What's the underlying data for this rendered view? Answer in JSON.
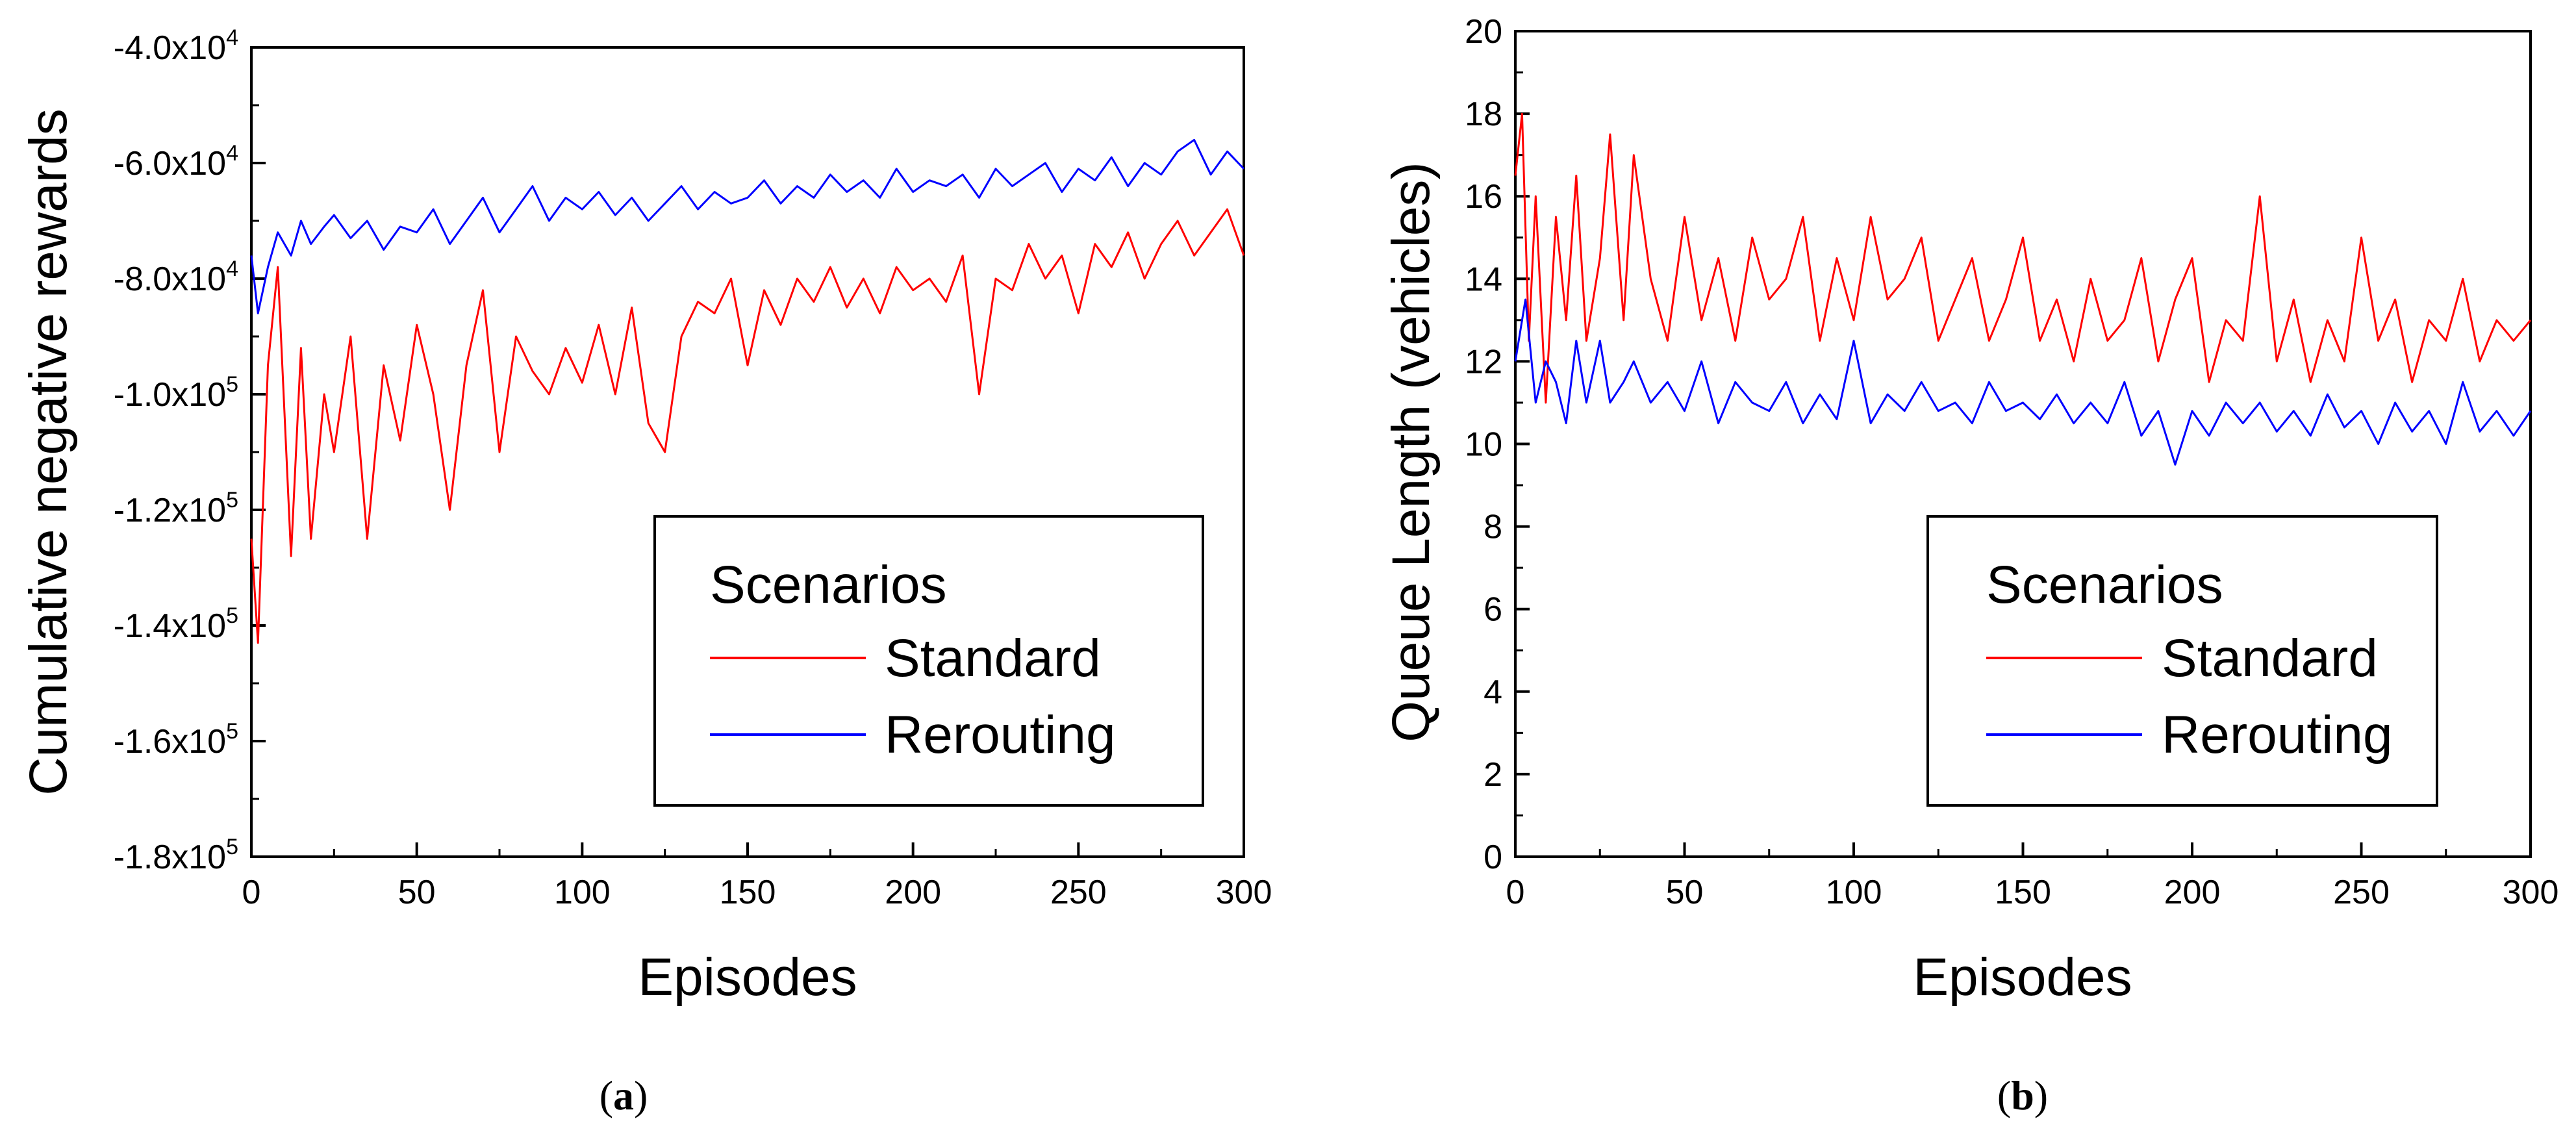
{
  "chart_data": [
    {
      "type": "line",
      "caption": {
        "open": "(",
        "letter": "a",
        "close": ")"
      },
      "xlabel": "Episodes",
      "ylabel": "Cumulative negative rewards",
      "xlim": [
        0,
        300
      ],
      "ylim": [
        -180000,
        -40000
      ],
      "x_ticks": [
        0,
        50,
        100,
        150,
        200,
        250,
        300
      ],
      "x_tick_labels": [
        "0",
        "50",
        "100",
        "150",
        "200",
        "250",
        "300"
      ],
      "y_ticks": [
        -40000,
        -60000,
        -80000,
        -100000,
        -120000,
        -140000,
        -160000,
        -180000
      ],
      "y_tick_labels": [
        {
          "mantissa": "-4.0x10",
          "exp": "4"
        },
        {
          "mantissa": "-6.0x10",
          "exp": "4"
        },
        {
          "mantissa": "-8.0x10",
          "exp": "4"
        },
        {
          "mantissa": "-1.0x10",
          "exp": "5"
        },
        {
          "mantissa": "-1.2x10",
          "exp": "5"
        },
        {
          "mantissa": "-1.4x10",
          "exp": "5"
        },
        {
          "mantissa": "-1.6x10",
          "exp": "5"
        },
        {
          "mantissa": "-1.8x10",
          "exp": "5"
        }
      ],
      "grid": false,
      "legend": {
        "title": "Scenarios",
        "position": "bottom-right",
        "entries": [
          "Standard",
          "Rerouting"
        ]
      },
      "series": [
        {
          "name": "Standard",
          "color": "#ff0000",
          "x": [
            0,
            2,
            5,
            8,
            12,
            15,
            18,
            22,
            25,
            30,
            35,
            40,
            45,
            50,
            55,
            60,
            65,
            70,
            75,
            80,
            85,
            90,
            95,
            100,
            105,
            110,
            115,
            120,
            125,
            130,
            135,
            140,
            145,
            150,
            155,
            160,
            165,
            170,
            175,
            180,
            185,
            190,
            195,
            200,
            205,
            210,
            215,
            220,
            225,
            230,
            235,
            240,
            245,
            250,
            255,
            260,
            265,
            270,
            275,
            280,
            285,
            290,
            295,
            300
          ],
          "values": [
            -125000,
            -143000,
            -95000,
            -78000,
            -128000,
            -92000,
            -125000,
            -100000,
            -110000,
            -90000,
            -125000,
            -95000,
            -108000,
            -88000,
            -100000,
            -120000,
            -95000,
            -82000,
            -110000,
            -90000,
            -96000,
            -100000,
            -92000,
            -98000,
            -88000,
            -100000,
            -85000,
            -105000,
            -110000,
            -90000,
            -84000,
            -86000,
            -80000,
            -95000,
            -82000,
            -88000,
            -80000,
            -84000,
            -78000,
            -85000,
            -80000,
            -86000,
            -78000,
            -82000,
            -80000,
            -84000,
            -76000,
            -100000,
            -80000,
            -82000,
            -74000,
            -80000,
            -76000,
            -86000,
            -74000,
            -78000,
            -72000,
            -80000,
            -74000,
            -70000,
            -76000,
            -72000,
            -68000,
            -76000
          ]
        },
        {
          "name": "Rerouting",
          "color": "#0000ff",
          "x": [
            0,
            2,
            5,
            8,
            12,
            15,
            18,
            22,
            25,
            30,
            35,
            40,
            45,
            50,
            55,
            60,
            65,
            70,
            75,
            80,
            85,
            90,
            95,
            100,
            105,
            110,
            115,
            120,
            125,
            130,
            135,
            140,
            145,
            150,
            155,
            160,
            165,
            170,
            175,
            180,
            185,
            190,
            195,
            200,
            205,
            210,
            215,
            220,
            225,
            230,
            235,
            240,
            245,
            250,
            255,
            260,
            265,
            270,
            275,
            280,
            285,
            290,
            295,
            300
          ],
          "values": [
            -76000,
            -86000,
            -78000,
            -72000,
            -76000,
            -70000,
            -74000,
            -71000,
            -69000,
            -73000,
            -70000,
            -75000,
            -71000,
            -72000,
            -68000,
            -74000,
            -70000,
            -66000,
            -72000,
            -68000,
            -64000,
            -70000,
            -66000,
            -68000,
            -65000,
            -69000,
            -66000,
            -70000,
            -67000,
            -64000,
            -68000,
            -65000,
            -67000,
            -66000,
            -63000,
            -67000,
            -64000,
            -66000,
            -62000,
            -65000,
            -63000,
            -66000,
            -61000,
            -65000,
            -63000,
            -64000,
            -62000,
            -66000,
            -61000,
            -64000,
            -62000,
            -60000,
            -65000,
            -61000,
            -63000,
            -59000,
            -64000,
            -60000,
            -62000,
            -58000,
            -56000,
            -62000,
            -58000,
            -61000
          ]
        }
      ]
    },
    {
      "type": "line",
      "caption": {
        "open": "(",
        "letter": "b",
        "close": ")"
      },
      "xlabel": "Episodes",
      "ylabel": "Queue Length (vehicles)",
      "xlim": [
        0,
        300
      ],
      "ylim": [
        0,
        20
      ],
      "x_ticks": [
        0,
        50,
        100,
        150,
        200,
        250,
        300
      ],
      "x_tick_labels": [
        "0",
        "50",
        "100",
        "150",
        "200",
        "250",
        "300"
      ],
      "y_ticks": [
        0,
        2,
        4,
        6,
        8,
        10,
        12,
        14,
        16,
        18,
        20
      ],
      "y_tick_labels": [
        "0",
        "2",
        "4",
        "6",
        "8",
        "10",
        "12",
        "14",
        "16",
        "18",
        "20"
      ],
      "grid": false,
      "legend": {
        "title": "Scenarios",
        "position": "bottom-right",
        "entries": [
          "Standard",
          "Rerouting"
        ]
      },
      "series": [
        {
          "name": "Standard",
          "color": "#ff0000",
          "x": [
            0,
            2,
            4,
            6,
            9,
            12,
            15,
            18,
            21,
            25,
            28,
            32,
            35,
            40,
            45,
            50,
            55,
            60,
            65,
            70,
            75,
            80,
            85,
            90,
            95,
            100,
            105,
            110,
            115,
            120,
            125,
            130,
            135,
            140,
            145,
            150,
            155,
            160,
            165,
            170,
            175,
            180,
            185,
            190,
            195,
            200,
            205,
            210,
            215,
            220,
            225,
            230,
            235,
            240,
            245,
            250,
            255,
            260,
            265,
            270,
            275,
            280,
            285,
            290,
            295,
            300
          ],
          "values": [
            16.5,
            18.0,
            12.5,
            16.0,
            11.0,
            15.5,
            13.0,
            16.5,
            12.5,
            14.5,
            17.5,
            13.0,
            17.0,
            14.0,
            12.5,
            15.5,
            13.0,
            14.5,
            12.5,
            15.0,
            13.5,
            14.0,
            15.5,
            12.5,
            14.5,
            13.0,
            15.5,
            13.5,
            14.0,
            15.0,
            12.5,
            13.5,
            14.5,
            12.5,
            13.5,
            15.0,
            12.5,
            13.5,
            12.0,
            14.0,
            12.5,
            13.0,
            14.5,
            12.0,
            13.5,
            14.5,
            11.5,
            13.0,
            12.5,
            16.0,
            12.0,
            13.5,
            11.5,
            13.0,
            12.0,
            15.0,
            12.5,
            13.5,
            11.5,
            13.0,
            12.5,
            14.0,
            12.0,
            13.0,
            12.5,
            13.0
          ]
        },
        {
          "name": "Rerouting",
          "color": "#0000ff",
          "x": [
            0,
            3,
            6,
            9,
            12,
            15,
            18,
            21,
            25,
            28,
            32,
            35,
            40,
            45,
            50,
            55,
            60,
            65,
            70,
            75,
            80,
            85,
            90,
            95,
            100,
            105,
            110,
            115,
            120,
            125,
            130,
            135,
            140,
            145,
            150,
            155,
            160,
            165,
            170,
            175,
            180,
            185,
            190,
            195,
            200,
            205,
            210,
            215,
            220,
            225,
            230,
            235,
            240,
            245,
            250,
            255,
            260,
            265,
            270,
            275,
            280,
            285,
            290,
            295,
            300
          ],
          "values": [
            12.0,
            13.5,
            11.0,
            12.0,
            11.5,
            10.5,
            12.5,
            11.0,
            12.5,
            11.0,
            11.5,
            12.0,
            11.0,
            11.5,
            10.8,
            12.0,
            10.5,
            11.5,
            11.0,
            10.8,
            11.5,
            10.5,
            11.2,
            10.6,
            12.5,
            10.5,
            11.2,
            10.8,
            11.5,
            10.8,
            11.0,
            10.5,
            11.5,
            10.8,
            11.0,
            10.6,
            11.2,
            10.5,
            11.0,
            10.5,
            11.5,
            10.2,
            10.8,
            9.5,
            10.8,
            10.2,
            11.0,
            10.5,
            11.0,
            10.3,
            10.8,
            10.2,
            11.2,
            10.4,
            10.8,
            10.0,
            11.0,
            10.3,
            10.8,
            10.0,
            11.5,
            10.3,
            10.8,
            10.2,
            10.8
          ]
        }
      ]
    }
  ]
}
